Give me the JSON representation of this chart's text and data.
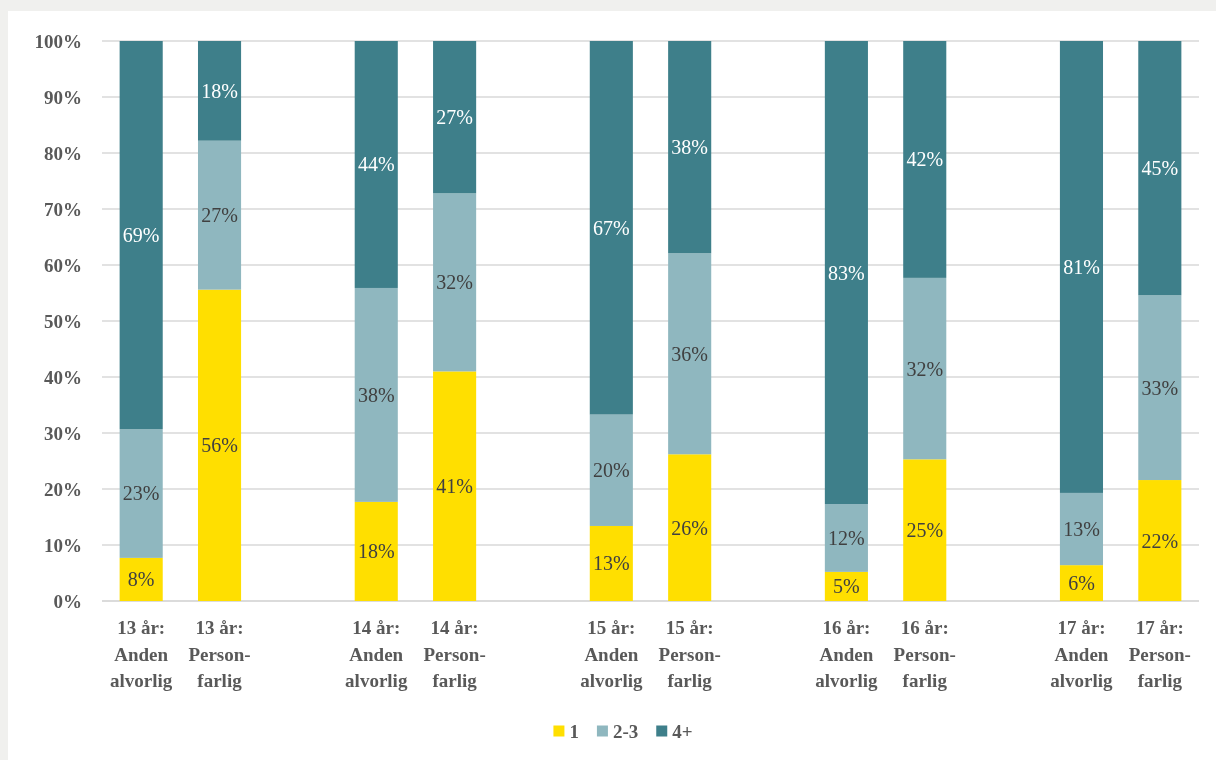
{
  "chart_data": {
    "type": "bar",
    "stacked": true,
    "categories": [
      "13 år: Anden alvorlig",
      "13 år: Person-farlig",
      null,
      "14 år: Anden alvorlig",
      "14 år: Person-farlig",
      null,
      "15 år: Anden alvorlig",
      "15 år: Person-farlig",
      null,
      "16 år: Anden alvorlig",
      "16 år: Person-farlig",
      null,
      "17 år: Anden alvorlig",
      "17 år: Person-farlig"
    ],
    "series": [
      {
        "name": "1",
        "color": "#ffdf00",
        "values": [
          7.7,
          55.6,
          null,
          17.7,
          41.0,
          null,
          13.4,
          26.2,
          null,
          5.2,
          25.3,
          null,
          6.4,
          21.6
        ],
        "value_labels": [
          "8%",
          "56%",
          null,
          "18%",
          "41%",
          null,
          "13%",
          "26%",
          null,
          "5%",
          "25%",
          null,
          "6%",
          "22%"
        ]
      },
      {
        "name": "2-3",
        "color": "#8fb7bf",
        "values": [
          23.0,
          26.6,
          null,
          38.2,
          31.8,
          null,
          19.9,
          35.9,
          null,
          12.1,
          32.4,
          null,
          12.9,
          33.0
        ],
        "value_labels": [
          "23%",
          "27%",
          null,
          "38%",
          "32%",
          null,
          "20%",
          "36%",
          null,
          "12%",
          "32%",
          null,
          "13%",
          "33%"
        ]
      },
      {
        "name": "4+",
        "color": "#3e7f8a",
        "values": [
          69.3,
          17.8,
          null,
          44.1,
          27.2,
          null,
          66.7,
          37.9,
          null,
          82.7,
          42.3,
          null,
          80.7,
          45.4
        ],
        "value_labels": [
          "69%",
          "18%",
          null,
          "44%",
          "27%",
          null,
          "67%",
          "38%",
          null,
          "83%",
          "42%",
          null,
          "81%",
          "45%"
        ]
      }
    ],
    "ylim": [
      0,
      100
    ],
    "yticks": [
      {
        "value": 0,
        "label": "0%"
      },
      {
        "value": 10,
        "label": "10%"
      },
      {
        "value": 20,
        "label": "20%"
      },
      {
        "value": 30,
        "label": "30%"
      },
      {
        "value": 40,
        "label": "40%"
      },
      {
        "value": 50,
        "label": "50%"
      },
      {
        "value": 60,
        "label": "60%"
      },
      {
        "value": 70,
        "label": "70%"
      },
      {
        "value": 80,
        "label": "80%"
      },
      {
        "value": 90,
        "label": "90%"
      },
      {
        "value": 100,
        "label": "100%"
      }
    ],
    "grid": "y",
    "legend": "bottom"
  }
}
